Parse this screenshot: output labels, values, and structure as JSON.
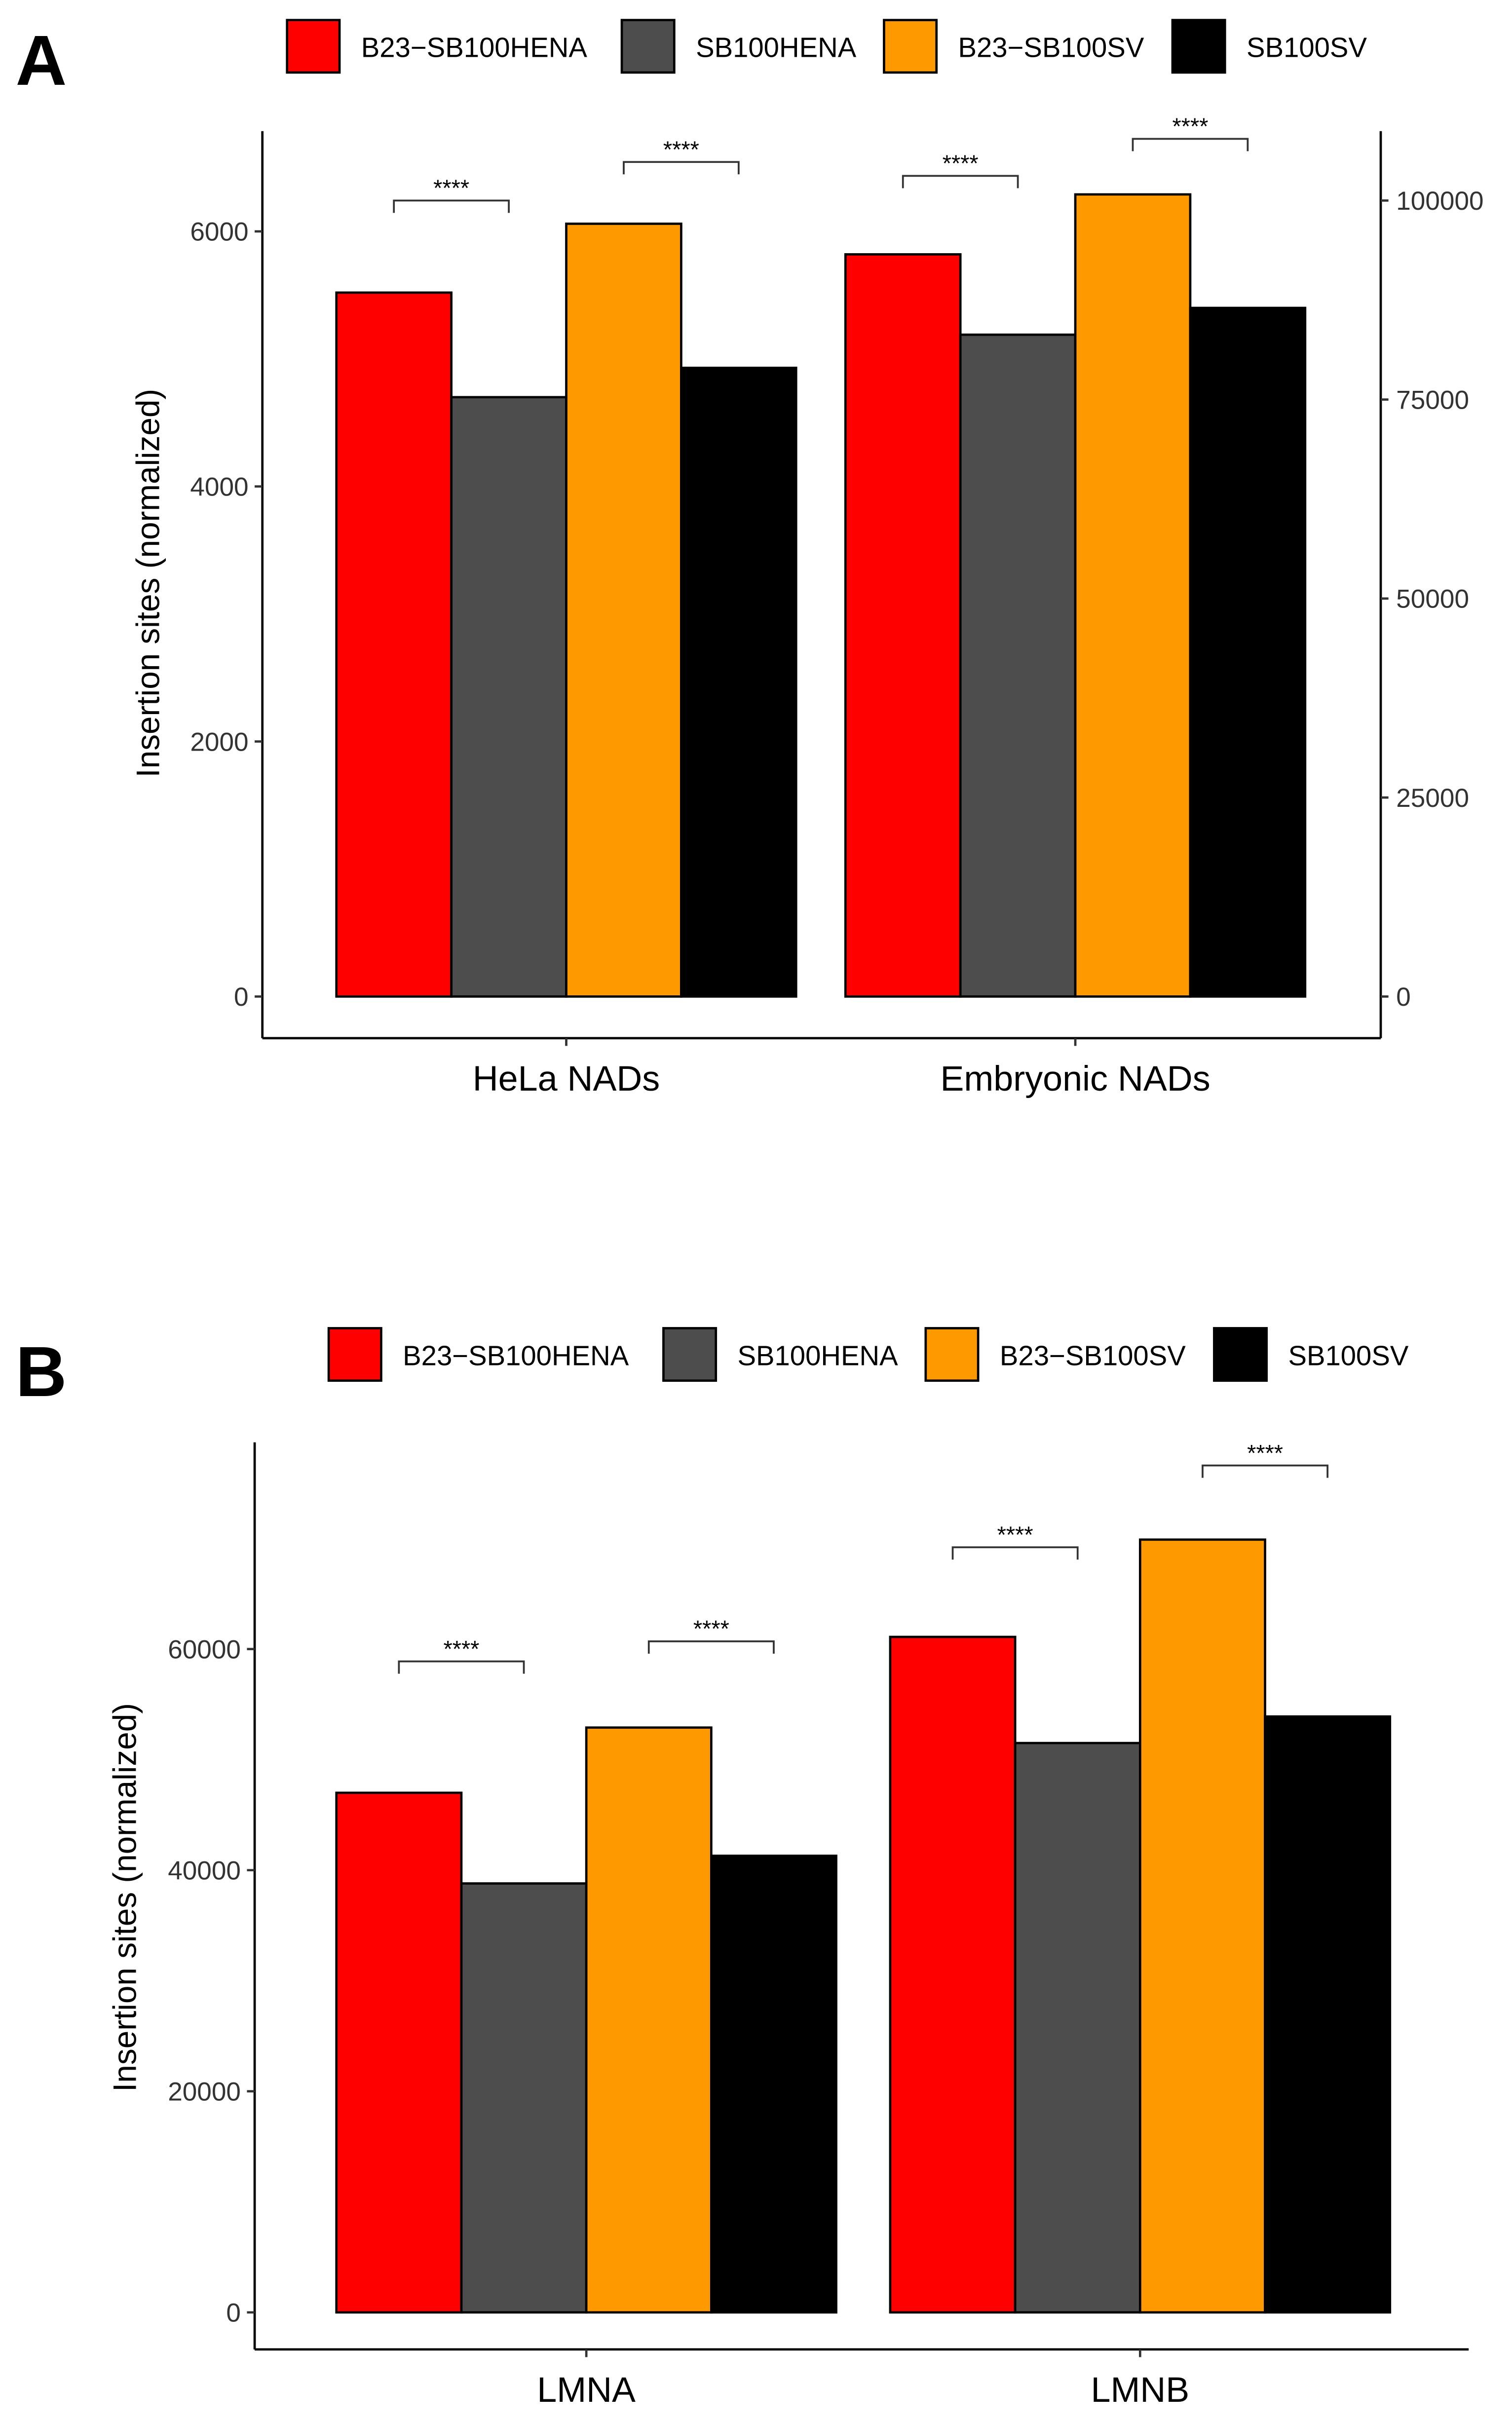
{
  "legend": [
    {
      "label": "B23−SB100HENA",
      "color": "#FF0000"
    },
    {
      "label": "SB100HENA",
      "color": "#4D4D4D"
    },
    {
      "label": "B23−SB100SV",
      "color": "#FF9900"
    },
    {
      "label": "SB100SV",
      "color": "#000000"
    }
  ],
  "chart_data": [
    {
      "panel": "A",
      "type": "bar",
      "ylabel": "Insertion sites (normalized)",
      "ylim": [
        0,
        6000
      ],
      "yticks": [
        "0",
        "2000",
        "4000",
        "6000"
      ],
      "y2ticks": [
        "0",
        "25000",
        "50000",
        "75000",
        "100000"
      ],
      "y2lim": [
        0,
        100000
      ],
      "categories": [
        "HeLa NADs",
        "Embryonic NADs"
      ],
      "series": [
        {
          "name": "B23−SB100HENA",
          "values": [
            5520,
            5820
          ]
        },
        {
          "name": "SB100HENA",
          "values": [
            4700,
            5190
          ]
        },
        {
          "name": "B23−SB100SV",
          "values": [
            6060,
            6290
          ]
        },
        {
          "name": "SB100SV",
          "values": [
            4930,
            5400
          ]
        }
      ],
      "significance": [
        {
          "category": 0,
          "pair": [
            0,
            1
          ],
          "label": "****"
        },
        {
          "category": 0,
          "pair": [
            2,
            3
          ],
          "label": "****"
        },
        {
          "category": 1,
          "pair": [
            0,
            1
          ],
          "label": "****"
        },
        {
          "category": 1,
          "pair": [
            2,
            3
          ],
          "label": "****"
        }
      ]
    },
    {
      "panel": "B",
      "type": "bar",
      "ylabel": "Insertion sites (normalized)",
      "ylim": [
        0,
        60000
      ],
      "yticks": [
        "0",
        "20000",
        "40000",
        "60000"
      ],
      "categories": [
        "LMNA",
        "LMNB"
      ],
      "series": [
        {
          "name": "B23−SB100HENA",
          "values": [
            47000,
            61100
          ]
        },
        {
          "name": "SB100HENA",
          "values": [
            38800,
            51500
          ]
        },
        {
          "name": "B23−SB100SV",
          "values": [
            52900,
            69900
          ]
        },
        {
          "name": "SB100SV",
          "values": [
            41300,
            53900
          ]
        }
      ],
      "significance": [
        {
          "category": 0,
          "pair": [
            0,
            1
          ],
          "label": "****"
        },
        {
          "category": 0,
          "pair": [
            2,
            3
          ],
          "label": "****"
        },
        {
          "category": 1,
          "pair": [
            0,
            1
          ],
          "label": "****"
        },
        {
          "category": 1,
          "pair": [
            2,
            3
          ],
          "label": "****"
        }
      ]
    }
  ]
}
